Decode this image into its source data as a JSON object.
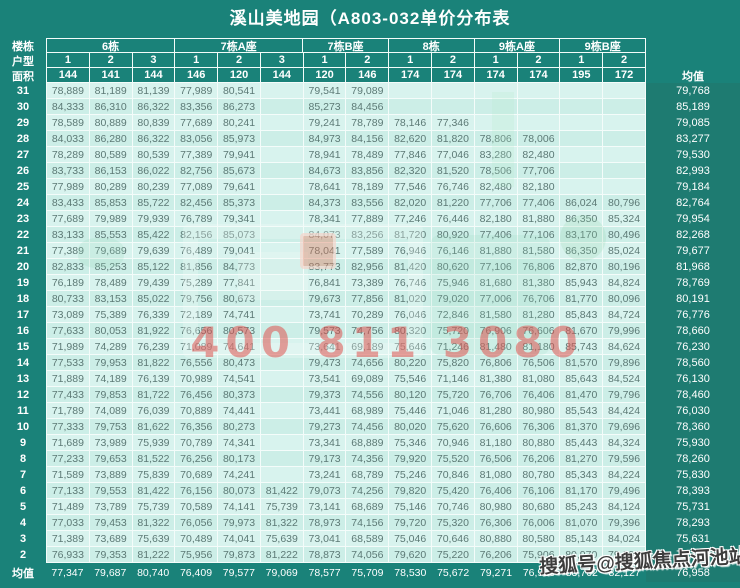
{
  "page": {
    "title": "溪山美地园（A803-032单价分布表"
  },
  "labels": {
    "row1": "楼栋",
    "row2": "户型",
    "row3": "面积",
    "avg_col": "均值",
    "avg_row": "均值"
  },
  "watermarks": {
    "phone": "400 811 3080",
    "sohu": "搜狐号@搜狐焦点河池站"
  },
  "colors": {
    "background_teal": "#1a8279",
    "avg_column_teal": "#1e7b71",
    "cell_light": "#d8f3ee",
    "cell_light_alt": "#cceee7",
    "grid_line": "#f4fcfa",
    "cell_text": "#5c7975",
    "header_text": "#ffffff",
    "phone_watermark_red": "#de524e"
  },
  "chart_data": {
    "type": "table",
    "title": "溪山美地园（A803-032单价分布表",
    "buildings": [
      {
        "name": "6栋",
        "units": [
          "1",
          "2",
          "3"
        ],
        "areas": [
          "144",
          "141",
          "144"
        ]
      },
      {
        "name": "7栋A座",
        "units": [
          "1",
          "2",
          "3"
        ],
        "areas": [
          "146",
          "120",
          "144"
        ]
      },
      {
        "name": "7栋B座",
        "units": [
          "1",
          "2"
        ],
        "areas": [
          "120",
          "146"
        ]
      },
      {
        "name": "8栋",
        "units": [
          "1",
          "2"
        ],
        "areas": [
          "174",
          "174"
        ]
      },
      {
        "name": "9栋A座",
        "units": [
          "1",
          "2"
        ],
        "areas": [
          "174",
          "174"
        ]
      },
      {
        "name": "9栋B座",
        "units": [
          "1",
          "2"
        ],
        "areas": [
          "195",
          "172"
        ]
      }
    ],
    "rows": [
      {
        "floor": "31",
        "values": [
          "78,889",
          "81,189",
          "81,139",
          "77,989",
          "80,541",
          "",
          "79,541",
          "79,089",
          "",
          "",
          "",
          "",
          "",
          ""
        ],
        "avg": "79,768"
      },
      {
        "floor": "30",
        "values": [
          "84,333",
          "86,310",
          "86,322",
          "83,356",
          "86,273",
          "",
          "85,273",
          "84,456",
          "",
          "",
          "",
          "",
          "",
          ""
        ],
        "avg": "85,189"
      },
      {
        "floor": "29",
        "values": [
          "78,589",
          "80,889",
          "80,839",
          "77,689",
          "80,241",
          "",
          "79,241",
          "78,789",
          "78,146",
          "77,346",
          "",
          "",
          "",
          ""
        ],
        "avg": "79,085"
      },
      {
        "floor": "28",
        "values": [
          "84,033",
          "86,280",
          "86,322",
          "83,056",
          "85,973",
          "",
          "84,973",
          "84,156",
          "82,620",
          "81,820",
          "78,806",
          "78,006",
          "",
          ""
        ],
        "avg": "83,277"
      },
      {
        "floor": "27",
        "values": [
          "78,289",
          "80,589",
          "80,539",
          "77,389",
          "79,941",
          "",
          "78,941",
          "78,489",
          "77,846",
          "77,046",
          "83,280",
          "82,480",
          "",
          ""
        ],
        "avg": "79,530"
      },
      {
        "floor": "26",
        "values": [
          "83,733",
          "86,153",
          "86,022",
          "82,756",
          "85,673",
          "",
          "84,673",
          "83,856",
          "82,320",
          "81,520",
          "78,506",
          "77,706",
          "",
          ""
        ],
        "avg": "82,993"
      },
      {
        "floor": "25",
        "values": [
          "77,989",
          "80,289",
          "80,239",
          "77,089",
          "79,641",
          "",
          "78,641",
          "78,189",
          "77,546",
          "76,746",
          "82,480",
          "82,180",
          "",
          ""
        ],
        "avg": "79,184"
      },
      {
        "floor": "24",
        "values": [
          "83,433",
          "85,853",
          "85,722",
          "82,456",
          "85,373",
          "",
          "84,373",
          "83,556",
          "82,020",
          "81,220",
          "77,706",
          "77,406",
          "86,024",
          "80,796"
        ],
        "avg": "82,764"
      },
      {
        "floor": "23",
        "values": [
          "77,689",
          "79,989",
          "79,939",
          "76,789",
          "79,341",
          "",
          "78,341",
          "77,889",
          "77,246",
          "76,446",
          "82,180",
          "81,880",
          "86,350",
          "85,324"
        ],
        "avg": "79,954"
      },
      {
        "floor": "22",
        "values": [
          "83,133",
          "85,553",
          "85,422",
          "82,156",
          "85,073",
          "",
          "84,073",
          "83,256",
          "81,720",
          "80,920",
          "77,406",
          "77,106",
          "83,170",
          "80,496"
        ],
        "avg": "82,268"
      },
      {
        "floor": "21",
        "values": [
          "77,389",
          "79,689",
          "79,639",
          "76,489",
          "79,041",
          "",
          "78,041",
          "77,589",
          "76,946",
          "76,146",
          "81,880",
          "81,580",
          "86,350",
          "85,024"
        ],
        "avg": "79,677"
      },
      {
        "floor": "20",
        "values": [
          "82,833",
          "85,253",
          "85,122",
          "81,856",
          "84,773",
          "",
          "83,773",
          "82,956",
          "81,420",
          "80,620",
          "77,106",
          "76,806",
          "82,870",
          "80,196"
        ],
        "avg": "81,968"
      },
      {
        "floor": "19",
        "values": [
          "76,189",
          "78,489",
          "79,439",
          "75,289",
          "77,841",
          "",
          "76,841",
          "73,389",
          "76,746",
          "75,946",
          "81,680",
          "81,380",
          "85,943",
          "84,824"
        ],
        "avg": "78,769"
      },
      {
        "floor": "18",
        "values": [
          "80,733",
          "83,153",
          "85,022",
          "79,756",
          "80,673",
          "",
          "79,673",
          "77,856",
          "81,020",
          "79,020",
          "77,006",
          "76,706",
          "81,770",
          "80,096"
        ],
        "avg": "80,191"
      },
      {
        "floor": "17",
        "values": [
          "73,089",
          "75,389",
          "76,339",
          "72,189",
          "74,741",
          "",
          "73,741",
          "70,289",
          "76,046",
          "72,846",
          "81,580",
          "81,280",
          "85,843",
          "84,724"
        ],
        "avg": "76,776"
      },
      {
        "floor": "16",
        "values": [
          "77,633",
          "80,053",
          "81,922",
          "76,656",
          "80,573",
          "",
          "79,573",
          "74,756",
          "80,320",
          "75,720",
          "76,906",
          "76,606",
          "81,670",
          "79,996"
        ],
        "avg": "78,660"
      },
      {
        "floor": "15",
        "values": [
          "71,989",
          "74,289",
          "76,239",
          "71,089",
          "74,641",
          "",
          "73,641",
          "69,189",
          "75,646",
          "71,246",
          "81,480",
          "81,180",
          "85,743",
          "84,624"
        ],
        "avg": "76,230"
      },
      {
        "floor": "14",
        "values": [
          "77,533",
          "79,953",
          "81,822",
          "76,556",
          "80,473",
          "",
          "79,473",
          "74,656",
          "80,220",
          "75,820",
          "76,806",
          "76,506",
          "81,570",
          "79,896"
        ],
        "avg": "78,560"
      },
      {
        "floor": "13",
        "values": [
          "71,889",
          "74,189",
          "76,139",
          "70,989",
          "74,541",
          "",
          "73,541",
          "69,089",
          "75,546",
          "71,146",
          "81,380",
          "81,080",
          "85,643",
          "84,524"
        ],
        "avg": "76,130"
      },
      {
        "floor": "12",
        "values": [
          "77,433",
          "79,853",
          "81,722",
          "76,456",
          "80,373",
          "",
          "79,373",
          "74,556",
          "80,120",
          "75,720",
          "76,706",
          "76,406",
          "81,470",
          "79,796"
        ],
        "avg": "78,460"
      },
      {
        "floor": "11",
        "values": [
          "71,789",
          "74,089",
          "76,039",
          "70,889",
          "74,441",
          "",
          "73,441",
          "68,989",
          "75,446",
          "71,046",
          "81,280",
          "80,980",
          "85,543",
          "84,424"
        ],
        "avg": "76,030"
      },
      {
        "floor": "10",
        "values": [
          "77,333",
          "79,753",
          "81,622",
          "76,356",
          "80,273",
          "",
          "79,273",
          "74,456",
          "80,020",
          "75,620",
          "76,606",
          "76,306",
          "81,370",
          "79,696"
        ],
        "avg": "78,360"
      },
      {
        "floor": "9",
        "values": [
          "71,689",
          "73,989",
          "75,939",
          "70,789",
          "74,341",
          "",
          "73,341",
          "68,889",
          "75,346",
          "70,946",
          "81,180",
          "80,880",
          "85,443",
          "84,324"
        ],
        "avg": "75,930"
      },
      {
        "floor": "8",
        "values": [
          "77,233",
          "79,653",
          "81,522",
          "76,256",
          "80,173",
          "",
          "79,173",
          "74,356",
          "79,920",
          "75,520",
          "76,506",
          "76,206",
          "81,270",
          "79,596"
        ],
        "avg": "78,260"
      },
      {
        "floor": "7",
        "values": [
          "71,589",
          "73,889",
          "75,839",
          "70,689",
          "74,241",
          "",
          "73,241",
          "68,789",
          "75,246",
          "70,846",
          "81,080",
          "80,780",
          "85,343",
          "84,224"
        ],
        "avg": "75,830"
      },
      {
        "floor": "6",
        "values": [
          "77,133",
          "79,553",
          "81,422",
          "76,156",
          "80,073",
          "81,422",
          "79,073",
          "74,256",
          "79,820",
          "75,420",
          "76,406",
          "76,106",
          "81,170",
          "79,496"
        ],
        "avg": "78,393"
      },
      {
        "floor": "5",
        "values": [
          "71,489",
          "73,789",
          "75,739",
          "70,589",
          "74,141",
          "75,739",
          "73,141",
          "68,689",
          "75,146",
          "70,746",
          "80,980",
          "80,680",
          "85,243",
          "84,124"
        ],
        "avg": "75,731"
      },
      {
        "floor": "4",
        "values": [
          "77,033",
          "79,453",
          "81,322",
          "76,056",
          "79,973",
          "81,322",
          "78,973",
          "74,156",
          "79,720",
          "75,320",
          "76,306",
          "76,006",
          "81,070",
          "79,396"
        ],
        "avg": "78,293"
      },
      {
        "floor": "3",
        "values": [
          "71,389",
          "73,689",
          "75,639",
          "70,489",
          "74,041",
          "75,639",
          "73,041",
          "68,589",
          "75,046",
          "70,646",
          "80,880",
          "80,580",
          "85,143",
          "84,024"
        ],
        "avg": "75,631"
      },
      {
        "floor": "2",
        "values": [
          "76,933",
          "79,353",
          "81,222",
          "75,956",
          "79,873",
          "81,222",
          "78,873",
          "74,056",
          "79,620",
          "75,220",
          "76,206",
          "75,906",
          "80,970",
          "79,296"
        ],
        "avg": "78,193"
      }
    ],
    "column_averages": {
      "label": "均值",
      "values": [
        "77,347",
        "79,687",
        "80,740",
        "76,409",
        "79,577",
        "79,069",
        "78,577",
        "75,709",
        "78,530",
        "75,672",
        "79,271",
        "76,916",
        "83,762",
        "82,127"
      ],
      "overall": "76,958"
    }
  }
}
